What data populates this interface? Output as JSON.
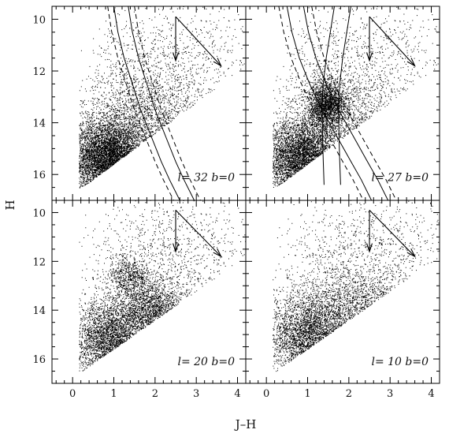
{
  "figure": {
    "xlabel": "J–H",
    "ylabel": "H"
  },
  "chart_data": [
    {
      "type": "scatter",
      "panel": "top-left",
      "annotation": "l= 32 b=0",
      "xlim": [
        -0.5,
        4.2
      ],
      "ylim": [
        17.0,
        9.5
      ],
      "yaxis_inverted": true,
      "x_ticks": [
        "0",
        "1",
        "2",
        "3",
        "4"
      ],
      "y_ticks": [
        "10",
        "12",
        "14",
        "16"
      ],
      "show_x_tick_labels": false,
      "show_y_tick_labels": true,
      "density": {
        "lower_envelope": [
          [
            0.15,
            16.6
          ],
          [
            4.2,
            11.8
          ]
        ],
        "clumps": [
          {
            "x": 0.85,
            "y": 15.4,
            "sx": 0.45,
            "sy": 0.75,
            "weight": 0.62
          },
          {
            "x": 1.6,
            "y": 14.4,
            "sx": 0.7,
            "sy": 1.2,
            "weight": 0.22
          },
          {
            "x": 2.3,
            "y": 12.5,
            "sx": 1.0,
            "sy": 1.6,
            "weight": 0.16
          }
        ],
        "n_points": 6500
      },
      "reddening_arrows": [
        {
          "from": [
            2.5,
            9.9
          ],
          "to": [
            2.5,
            11.6
          ]
        },
        {
          "from": [
            2.5,
            9.9
          ],
          "to": [
            3.6,
            11.8
          ]
        }
      ],
      "curves": [
        {
          "style": "solid",
          "points": [
            [
              1.0,
              9.5
            ],
            [
              1.1,
              10.5
            ],
            [
              1.25,
              11.5
            ],
            [
              1.45,
              12.5
            ],
            [
              1.65,
              13.5
            ],
            [
              1.9,
              14.5
            ],
            [
              2.15,
              15.5
            ],
            [
              2.35,
              16.2
            ],
            [
              2.6,
              17.0
            ]
          ]
        },
        {
          "style": "solid",
          "points": [
            [
              1.35,
              9.5
            ],
            [
              1.45,
              10.5
            ],
            [
              1.6,
              11.5
            ],
            [
              1.8,
              12.5
            ],
            [
              2.0,
              13.5
            ],
            [
              2.25,
              14.5
            ],
            [
              2.5,
              15.5
            ],
            [
              2.7,
              16.2
            ],
            [
              2.95,
              17.0
            ]
          ]
        },
        {
          "style": "dashed",
          "points": [
            [
              0.85,
              9.5
            ],
            [
              0.95,
              10.5
            ],
            [
              1.1,
              11.5
            ],
            [
              1.3,
              12.5
            ],
            [
              1.5,
              13.5
            ],
            [
              1.75,
              14.5
            ],
            [
              2.0,
              15.5
            ],
            [
              2.2,
              16.2
            ],
            [
              2.45,
              17.0
            ]
          ]
        },
        {
          "style": "dashed",
          "points": [
            [
              1.5,
              9.5
            ],
            [
              1.6,
              10.5
            ],
            [
              1.75,
              11.5
            ],
            [
              1.95,
              12.5
            ],
            [
              2.15,
              13.5
            ],
            [
              2.4,
              14.5
            ],
            [
              2.65,
              15.5
            ],
            [
              2.85,
              16.2
            ],
            [
              3.1,
              17.0
            ]
          ]
        }
      ]
    },
    {
      "type": "scatter",
      "panel": "top-right",
      "annotation": "l= 27 b=0",
      "xlim": [
        -0.5,
        4.2
      ],
      "ylim": [
        17.0,
        9.5
      ],
      "yaxis_inverted": true,
      "x_ticks": [
        "0",
        "1",
        "2",
        "3",
        "4"
      ],
      "y_ticks": [
        "10",
        "12",
        "14",
        "16"
      ],
      "show_x_tick_labels": false,
      "show_y_tick_labels": false,
      "density": {
        "lower_envelope": [
          [
            0.15,
            16.6
          ],
          [
            4.2,
            11.8
          ]
        ],
        "clumps": [
          {
            "x": 0.85,
            "y": 15.4,
            "sx": 0.45,
            "sy": 0.75,
            "weight": 0.5
          },
          {
            "x": 1.45,
            "y": 13.3,
            "sx": 0.22,
            "sy": 0.45,
            "weight": 0.2
          },
          {
            "x": 1.8,
            "y": 14.4,
            "sx": 0.7,
            "sy": 1.2,
            "weight": 0.15
          },
          {
            "x": 2.3,
            "y": 12.5,
            "sx": 1.0,
            "sy": 1.6,
            "weight": 0.15
          }
        ],
        "n_points": 7500
      },
      "reddening_arrows": [
        {
          "from": [
            2.5,
            9.9
          ],
          "to": [
            2.5,
            11.6
          ]
        },
        {
          "from": [
            2.5,
            9.9
          ],
          "to": [
            3.6,
            11.8
          ]
        }
      ],
      "curves": [
        {
          "style": "solid",
          "points": [
            [
              0.5,
              9.5
            ],
            [
              0.62,
              10.5
            ],
            [
              0.8,
              11.5
            ],
            [
              1.05,
              12.5
            ],
            [
              1.35,
              13.5
            ],
            [
              1.7,
              14.5
            ],
            [
              2.05,
              15.5
            ],
            [
              2.3,
              16.2
            ],
            [
              2.55,
              17.0
            ]
          ]
        },
        {
          "style": "solid",
          "points": [
            [
              0.9,
              9.5
            ],
            [
              1.02,
              10.5
            ],
            [
              1.2,
              11.5
            ],
            [
              1.45,
              12.5
            ],
            [
              1.75,
              13.5
            ],
            [
              2.1,
              14.5
            ],
            [
              2.45,
              15.5
            ],
            [
              2.7,
              16.2
            ],
            [
              2.95,
              17.0
            ]
          ]
        },
        {
          "style": "dashed",
          "points": [
            [
              0.3,
              9.5
            ],
            [
              0.42,
              10.5
            ],
            [
              0.6,
              11.5
            ],
            [
              0.85,
              12.5
            ],
            [
              1.15,
              13.5
            ],
            [
              1.5,
              14.5
            ],
            [
              1.85,
              15.5
            ],
            [
              2.1,
              16.2
            ],
            [
              2.35,
              17.0
            ]
          ]
        },
        {
          "style": "dashed",
          "points": [
            [
              1.1,
              9.5
            ],
            [
              1.22,
              10.5
            ],
            [
              1.4,
              11.5
            ],
            [
              1.65,
              12.5
            ],
            [
              1.95,
              13.5
            ],
            [
              2.3,
              14.5
            ],
            [
              2.65,
              15.5
            ],
            [
              2.9,
              16.2
            ],
            [
              3.15,
              17.0
            ]
          ]
        },
        {
          "style": "solid",
          "points": [
            [
              1.65,
              9.5
            ],
            [
              1.55,
              10.5
            ],
            [
              1.45,
              11.5
            ],
            [
              1.38,
              12.5
            ],
            [
              1.35,
              13.5
            ],
            [
              1.36,
              14.5
            ],
            [
              1.38,
              15.5
            ],
            [
              1.4,
              16.4
            ]
          ]
        },
        {
          "style": "solid",
          "points": [
            [
              2.05,
              9.5
            ],
            [
              1.95,
              10.5
            ],
            [
              1.85,
              11.5
            ],
            [
              1.78,
              12.5
            ],
            [
              1.75,
              13.5
            ],
            [
              1.76,
              14.5
            ],
            [
              1.78,
              15.5
            ],
            [
              1.8,
              16.4
            ]
          ]
        }
      ]
    },
    {
      "type": "scatter",
      "panel": "bottom-left",
      "annotation": "l= 20 b=0",
      "xlim": [
        -0.5,
        4.2
      ],
      "ylim": [
        17.0,
        9.5
      ],
      "yaxis_inverted": true,
      "x_ticks": [
        "0",
        "1",
        "2",
        "3",
        "4"
      ],
      "y_ticks": [
        "10",
        "12",
        "14",
        "16"
      ],
      "show_x_tick_labels": true,
      "show_y_tick_labels": true,
      "density": {
        "lower_envelope": [
          [
            0.15,
            16.6
          ],
          [
            4.2,
            11.8
          ]
        ],
        "clumps": [
          {
            "x": 0.9,
            "y": 15.2,
            "sx": 0.45,
            "sy": 0.8,
            "weight": 0.45
          },
          {
            "x": 1.9,
            "y": 14.0,
            "sx": 0.4,
            "sy": 0.6,
            "weight": 0.25
          },
          {
            "x": 1.35,
            "y": 12.6,
            "sx": 0.25,
            "sy": 0.4,
            "weight": 0.08
          },
          {
            "x": 2.3,
            "y": 12.5,
            "sx": 1.0,
            "sy": 1.6,
            "weight": 0.22
          }
        ],
        "n_points": 5500
      },
      "reddening_arrows": [
        {
          "from": [
            2.5,
            9.9
          ],
          "to": [
            2.5,
            11.6
          ]
        },
        {
          "from": [
            2.5,
            9.9
          ],
          "to": [
            3.6,
            11.8
          ]
        }
      ],
      "curves": []
    },
    {
      "type": "scatter",
      "panel": "bottom-right",
      "annotation": "l= 10 b=0",
      "xlim": [
        -0.5,
        4.2
      ],
      "ylim": [
        17.0,
        9.5
      ],
      "yaxis_inverted": true,
      "x_ticks": [
        "0",
        "1",
        "2",
        "3",
        "4"
      ],
      "y_ticks": [
        "10",
        "12",
        "14",
        "16"
      ],
      "show_x_tick_labels": true,
      "show_y_tick_labels": false,
      "density": {
        "lower_envelope": [
          [
            0.15,
            16.6
          ],
          [
            4.2,
            11.8
          ]
        ],
        "clumps": [
          {
            "x": 1.0,
            "y": 15.1,
            "sx": 0.5,
            "sy": 0.8,
            "weight": 0.45
          },
          {
            "x": 2.1,
            "y": 14.2,
            "sx": 0.7,
            "sy": 0.9,
            "weight": 0.3
          },
          {
            "x": 2.5,
            "y": 12.5,
            "sx": 1.1,
            "sy": 1.6,
            "weight": 0.25
          }
        ],
        "n_points": 4500
      },
      "reddening_arrows": [
        {
          "from": [
            2.5,
            9.9
          ],
          "to": [
            2.5,
            11.6
          ]
        },
        {
          "from": [
            2.5,
            9.9
          ],
          "to": [
            3.6,
            11.8
          ]
        }
      ],
      "curves": []
    }
  ]
}
